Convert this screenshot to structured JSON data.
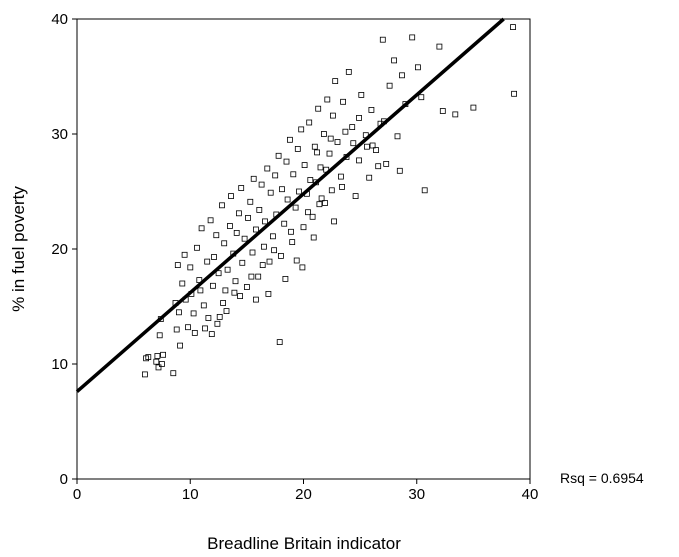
{
  "chart_data": {
    "type": "scatter",
    "xlabel": "Breadline Britain indicator",
    "ylabel": "% in fuel poverty",
    "xlim": [
      0,
      40
    ],
    "ylim": [
      0,
      40
    ],
    "x_ticks": [
      "0",
      "10",
      "20",
      "30",
      "40"
    ],
    "y_ticks": [
      "0",
      "10",
      "20",
      "30",
      "40"
    ],
    "grid": false,
    "marker": "hollow-square",
    "fit_line": {
      "intercept": 7.6,
      "slope": 0.86
    },
    "annotation": "Rsq = 0.6954",
    "points": [
      [
        6.0,
        9.1
      ],
      [
        6.1,
        10.5
      ],
      [
        6.3,
        10.6
      ],
      [
        7.0,
        10.2
      ],
      [
        7.1,
        10.7
      ],
      [
        7.2,
        9.7
      ],
      [
        7.5,
        10.0
      ],
      [
        7.6,
        10.8
      ],
      [
        7.3,
        12.5
      ],
      [
        7.4,
        13.9
      ],
      [
        8.5,
        9.2
      ],
      [
        9.1,
        11.6
      ],
      [
        8.8,
        13.0
      ],
      [
        9.0,
        14.5
      ],
      [
        8.7,
        15.3
      ],
      [
        9.3,
        17.0
      ],
      [
        8.9,
        18.6
      ],
      [
        9.5,
        19.5
      ],
      [
        10.0,
        18.4
      ],
      [
        10.1,
        16.1
      ],
      [
        10.3,
        14.4
      ],
      [
        10.6,
        20.1
      ],
      [
        10.8,
        17.3
      ],
      [
        11.0,
        21.8
      ],
      [
        11.2,
        15.1
      ],
      [
        11.3,
        13.1
      ],
      [
        11.5,
        18.9
      ],
      [
        11.8,
        22.5
      ],
      [
        12.0,
        16.8
      ],
      [
        12.1,
        19.3
      ],
      [
        12.3,
        21.2
      ],
      [
        12.5,
        17.9
      ],
      [
        12.6,
        14.1
      ],
      [
        12.8,
        23.8
      ],
      [
        13.0,
        20.5
      ],
      [
        13.1,
        16.4
      ],
      [
        13.3,
        18.2
      ],
      [
        13.5,
        22.0
      ],
      [
        13.6,
        24.6
      ],
      [
        13.8,
        19.6
      ],
      [
        14.0,
        17.2
      ],
      [
        14.1,
        21.4
      ],
      [
        14.3,
        23.1
      ],
      [
        14.5,
        25.3
      ],
      [
        14.6,
        18.8
      ],
      [
        14.8,
        20.9
      ],
      [
        15.0,
        16.7
      ],
      [
        15.1,
        22.7
      ],
      [
        15.3,
        24.1
      ],
      [
        15.5,
        19.7
      ],
      [
        15.6,
        26.1
      ],
      [
        15.8,
        21.7
      ],
      [
        16.0,
        17.6
      ],
      [
        16.1,
        23.4
      ],
      [
        16.3,
        25.6
      ],
      [
        16.5,
        20.2
      ],
      [
        16.6,
        22.4
      ],
      [
        16.8,
        27.0
      ],
      [
        17.0,
        18.9
      ],
      [
        17.1,
        24.9
      ],
      [
        17.3,
        21.1
      ],
      [
        17.5,
        26.4
      ],
      [
        17.6,
        23.0
      ],
      [
        17.8,
        28.1
      ],
      [
        18.0,
        19.4
      ],
      [
        18.1,
        25.2
      ],
      [
        18.3,
        22.2
      ],
      [
        18.5,
        27.6
      ],
      [
        18.6,
        24.3
      ],
      [
        18.8,
        29.5
      ],
      [
        19.0,
        20.6
      ],
      [
        19.1,
        26.5
      ],
      [
        19.3,
        23.6
      ],
      [
        19.5,
        28.7
      ],
      [
        19.6,
        25.0
      ],
      [
        19.8,
        30.4
      ],
      [
        20.0,
        21.9
      ],
      [
        20.1,
        27.3
      ],
      [
        20.3,
        24.8
      ],
      [
        20.5,
        31.0
      ],
      [
        20.6,
        26.0
      ],
      [
        20.8,
        22.8
      ],
      [
        21.0,
        28.9
      ],
      [
        21.1,
        25.8
      ],
      [
        21.3,
        32.2
      ],
      [
        21.5,
        27.1
      ],
      [
        21.6,
        24.4
      ],
      [
        21.8,
        30.0
      ],
      [
        22.0,
        26.9
      ],
      [
        22.1,
        33.0
      ],
      [
        22.3,
        28.3
      ],
      [
        22.5,
        25.1
      ],
      [
        22.6,
        31.6
      ],
      [
        22.8,
        34.6
      ],
      [
        23.0,
        29.3
      ],
      [
        23.3,
        26.3
      ],
      [
        23.5,
        32.8
      ],
      [
        23.8,
        28.0
      ],
      [
        24.0,
        35.4
      ],
      [
        24.3,
        30.6
      ],
      [
        24.6,
        24.6
      ],
      [
        24.9,
        27.7
      ],
      [
        25.1,
        33.4
      ],
      [
        25.5,
        29.9
      ],
      [
        25.8,
        26.2
      ],
      [
        26.0,
        32.1
      ],
      [
        26.4,
        28.6
      ],
      [
        26.8,
        30.9
      ],
      [
        27.0,
        38.2
      ],
      [
        27.3,
        27.4
      ],
      [
        27.6,
        34.2
      ],
      [
        28.0,
        36.4
      ],
      [
        28.3,
        29.8
      ],
      [
        28.5,
        26.8
      ],
      [
        28.7,
        35.1
      ],
      [
        29.0,
        32.6
      ],
      [
        29.6,
        38.4
      ],
      [
        30.1,
        35.8
      ],
      [
        30.4,
        33.2
      ],
      [
        30.7,
        25.1
      ],
      [
        32.0,
        37.6
      ],
      [
        32.3,
        32.0
      ],
      [
        33.4,
        31.7
      ],
      [
        35.0,
        32.3
      ],
      [
        38.5,
        39.3
      ],
      [
        38.6,
        33.5
      ],
      [
        17.9,
        11.9
      ],
      [
        15.8,
        15.6
      ],
      [
        19.4,
        19.0
      ],
      [
        20.9,
        21.0
      ],
      [
        22.7,
        22.4
      ],
      [
        11.9,
        12.6
      ],
      [
        13.2,
        14.6
      ],
      [
        14.4,
        15.9
      ],
      [
        16.9,
        16.1
      ],
      [
        18.4,
        17.4
      ],
      [
        19.9,
        18.4
      ],
      [
        21.4,
        23.9
      ],
      [
        12.4,
        13.5
      ],
      [
        10.4,
        12.7
      ],
      [
        9.6,
        15.6
      ],
      [
        10.9,
        16.4
      ],
      [
        11.6,
        14.0
      ],
      [
        9.8,
        13.2
      ],
      [
        12.9,
        15.3
      ],
      [
        13.9,
        16.2
      ],
      [
        15.4,
        17.6
      ],
      [
        16.4,
        18.6
      ],
      [
        17.4,
        19.9
      ],
      [
        18.9,
        21.5
      ],
      [
        20.4,
        23.2
      ],
      [
        21.9,
        24.0
      ],
      [
        23.4,
        25.4
      ],
      [
        24.4,
        29.2
      ],
      [
        25.6,
        28.9
      ],
      [
        26.1,
        29.0
      ],
      [
        26.6,
        27.2
      ],
      [
        27.1,
        31.1
      ],
      [
        24.9,
        31.4
      ],
      [
        23.7,
        30.2
      ],
      [
        22.4,
        29.6
      ],
      [
        21.2,
        28.4
      ]
    ]
  }
}
